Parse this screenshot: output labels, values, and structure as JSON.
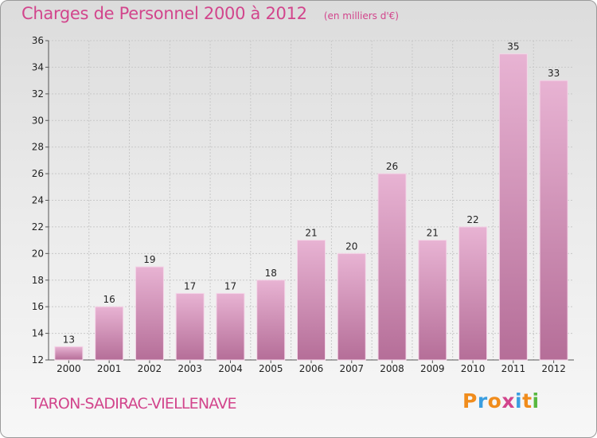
{
  "title": "Charges de Personnel 2000 à 2012",
  "subtitle": "(en milliers d'€)",
  "commune": "TARON-SADIRAC-VIELLENAVE",
  "logo": {
    "text": "Proxiti",
    "letter_colors": [
      "#f08c1c",
      "#3a9ee0",
      "#f08c1c",
      "#d2458c",
      "#3a9ee0",
      "#f08c1c",
      "#58b840"
    ]
  },
  "colors": {
    "bar_light": "#e8b3d3",
    "bar_dark": "#b56e98",
    "text": "#222222",
    "grid": "#c8c8c8"
  },
  "chart_data": {
    "type": "bar",
    "title": "Charges de Personnel 2000 à 2012",
    "subtitle": "(en milliers d'€)",
    "categories": [
      "2000",
      "2001",
      "2002",
      "2003",
      "2004",
      "2005",
      "2006",
      "2007",
      "2008",
      "2009",
      "2010",
      "2011",
      "2012"
    ],
    "values": [
      13,
      16,
      19,
      17,
      17,
      18,
      21,
      20,
      26,
      21,
      22,
      35,
      33
    ],
    "ylim": [
      12,
      36
    ],
    "yticks": [
      12,
      14,
      16,
      18,
      20,
      22,
      24,
      26,
      28,
      30,
      32,
      34,
      36
    ],
    "grid": true,
    "xlabel": "",
    "ylabel": ""
  }
}
